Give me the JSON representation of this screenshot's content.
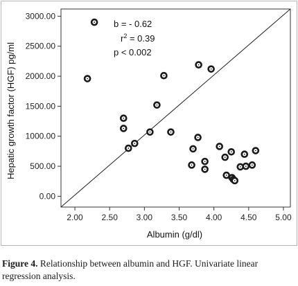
{
  "chart_data": {
    "type": "scatter",
    "xlabel": "Albumin (g/dl)",
    "ylabel": "Hepatic growth factor (HGF) pg/ml",
    "xlim": [
      1.8,
      5.1
    ],
    "ylim": [
      -180,
      3120
    ],
    "x_ticks": [
      "2.00",
      "2.50",
      "3.00",
      "3.50",
      "4.00",
      "4.50",
      "5.00"
    ],
    "x_tick_values": [
      2.0,
      2.5,
      3.0,
      3.5,
      4.0,
      4.5,
      5.0
    ],
    "y_ticks": [
      "0.00",
      "500.00",
      "1000.00",
      "1500.00",
      "2000.00",
      "2500.00",
      "3000.00"
    ],
    "y_tick_values": [
      0,
      500,
      1000,
      1500,
      2000,
      2500,
      3000
    ],
    "annotations": {
      "b": "b = - 0.62",
      "r2_prefix": "r",
      "r2_sup": "2",
      "r2_value": " = 0.39",
      "p": "p < 0.002"
    },
    "reference_line": {
      "from": [
        1.8,
        -180
      ],
      "to": [
        5.1,
        3120
      ]
    },
    "points": [
      {
        "x": 2.28,
        "y": 2900
      },
      {
        "x": 2.18,
        "y": 1960
      },
      {
        "x": 2.7,
        "y": 1300
      },
      {
        "x": 2.7,
        "y": 1130
      },
      {
        "x": 2.77,
        "y": 800
      },
      {
        "x": 2.86,
        "y": 880
      },
      {
        "x": 3.08,
        "y": 1070
      },
      {
        "x": 3.18,
        "y": 1520
      },
      {
        "x": 3.28,
        "y": 2010
      },
      {
        "x": 3.38,
        "y": 1070
      },
      {
        "x": 3.68,
        "y": 520
      },
      {
        "x": 3.7,
        "y": 790
      },
      {
        "x": 3.77,
        "y": 980
      },
      {
        "x": 3.78,
        "y": 2190
      },
      {
        "x": 3.87,
        "y": 580
      },
      {
        "x": 3.87,
        "y": 450
      },
      {
        "x": 3.96,
        "y": 2120
      },
      {
        "x": 4.08,
        "y": 830
      },
      {
        "x": 4.16,
        "y": 650
      },
      {
        "x": 4.18,
        "y": 350
      },
      {
        "x": 4.25,
        "y": 740
      },
      {
        "x": 4.26,
        "y": 310
      },
      {
        "x": 4.28,
        "y": 280
      },
      {
        "x": 4.3,
        "y": 260
      },
      {
        "x": 4.38,
        "y": 490
      },
      {
        "x": 4.44,
        "y": 700
      },
      {
        "x": 4.46,
        "y": 500
      },
      {
        "x": 4.55,
        "y": 520
      },
      {
        "x": 4.6,
        "y": 760
      }
    ]
  },
  "caption": {
    "label": "Figure 4.",
    "text": " Relationship between albumin and HGF. Univariate linear regression analysis."
  }
}
